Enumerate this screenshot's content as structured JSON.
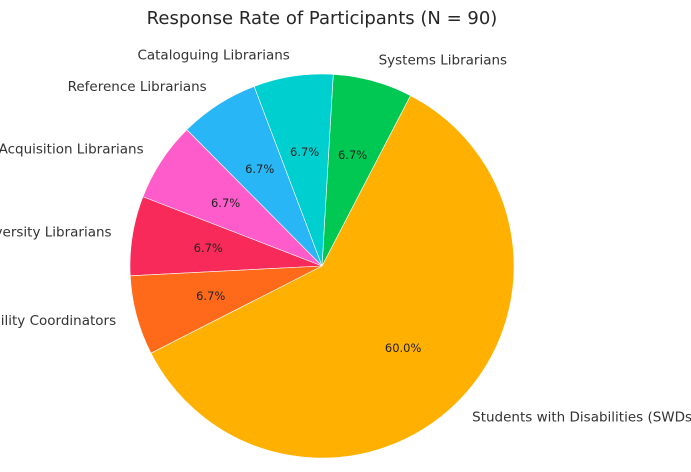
{
  "chart_data": {
    "type": "pie",
    "title": "Response Rate of Participants (N = 90)",
    "slices": [
      {
        "label": "Students with Disabilities (SWDs)",
        "value": 60.0,
        "pct_label": "60.0%",
        "color": "#FFB000"
      },
      {
        "label": "Systems Librarians",
        "value": 6.7,
        "pct_label": "6.7%",
        "color": "#00C853"
      },
      {
        "label": "Cataloguing Librarians",
        "value": 6.7,
        "pct_label": "6.7%",
        "color": "#00CFCF"
      },
      {
        "label": "Reference Librarians",
        "value": 6.7,
        "pct_label": "6.7%",
        "color": "#29B6F6"
      },
      {
        "label": "Acquisition Librarians",
        "value": 6.7,
        "pct_label": "6.7%",
        "color": "#FF5CCB"
      },
      {
        "label": "University Librarians",
        "value": 6.7,
        "pct_label": "6.7%",
        "color": "#F72A5A"
      },
      {
        "label": "Disability Coordinators",
        "value": 6.7,
        "pct_label": "6.7%",
        "color": "#FF6A1A"
      }
    ]
  }
}
